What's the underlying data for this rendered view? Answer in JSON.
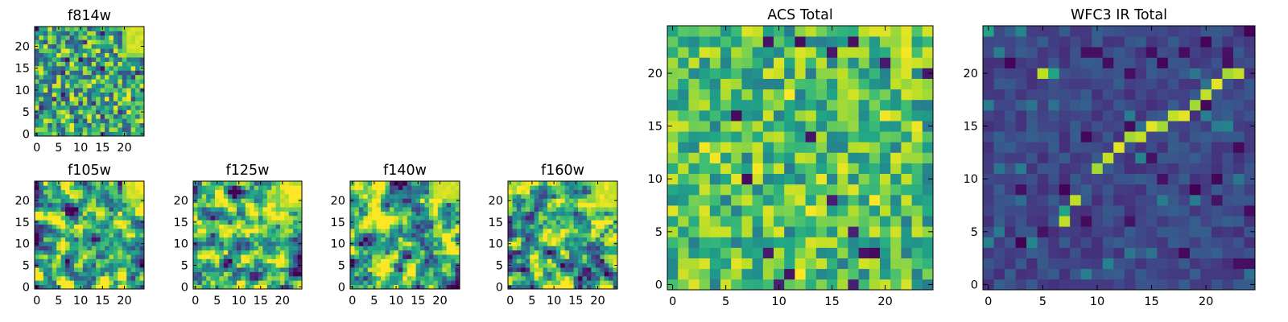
{
  "chart_data": [
    {
      "type": "heatmap",
      "id": "f814w",
      "title": "f814w",
      "grid": [
        25,
        25
      ],
      "xlim": [
        -0.5,
        24.5
      ],
      "ylim": [
        -0.5,
        24.5
      ],
      "xticks": [
        0,
        5,
        10,
        15,
        20
      ],
      "yticks": [
        0,
        5,
        10,
        15,
        20
      ],
      "colormap": "viridis",
      "pattern": "noise",
      "seed": 11,
      "hot_region": {
        "x": [
          20,
          24
        ],
        "y": [
          18,
          24
        ],
        "level": 0.92
      }
    },
    {
      "type": "heatmap",
      "id": "f105w",
      "title": "f105w",
      "grid": [
        25,
        25
      ],
      "xlim": [
        -0.5,
        24.5
      ],
      "ylim": [
        -0.5,
        24.5
      ],
      "xticks": [
        0,
        5,
        10,
        15,
        20
      ],
      "yticks": [
        0,
        5,
        10,
        15,
        20
      ],
      "colormap": "viridis",
      "pattern": "smooth-noise",
      "seed": 23,
      "hot_region": {
        "x": [
          20,
          24
        ],
        "y": [
          20,
          24
        ],
        "level": 0.95
      }
    },
    {
      "type": "heatmap",
      "id": "f125w",
      "title": "f125w",
      "grid": [
        25,
        25
      ],
      "xlim": [
        -0.5,
        24.5
      ],
      "ylim": [
        -0.5,
        24.5
      ],
      "xticks": [
        0,
        5,
        10,
        15,
        20
      ],
      "yticks": [
        0,
        5,
        10,
        15,
        20
      ],
      "colormap": "viridis",
      "pattern": "smooth-noise",
      "seed": 37,
      "hot_region": {
        "x": [
          19,
          24
        ],
        "y": [
          18,
          24
        ],
        "level": 0.9
      }
    },
    {
      "type": "heatmap",
      "id": "f140w",
      "title": "f140w",
      "grid": [
        25,
        25
      ],
      "xlim": [
        -0.5,
        24.5
      ],
      "ylim": [
        -0.5,
        24.5
      ],
      "xticks": [
        0,
        5,
        10,
        15,
        20
      ],
      "yticks": [
        0,
        5,
        10,
        15,
        20
      ],
      "colormap": "viridis",
      "pattern": "smooth-noise",
      "seed": 41,
      "hot_region": {
        "x": [
          18,
          24
        ],
        "y": [
          20,
          24
        ],
        "level": 0.93
      }
    },
    {
      "type": "heatmap",
      "id": "f160w",
      "title": "f160w",
      "grid": [
        25,
        25
      ],
      "xlim": [
        -0.5,
        24.5
      ],
      "ylim": [
        -0.5,
        24.5
      ],
      "xticks": [
        0,
        5,
        10,
        15,
        20
      ],
      "yticks": [
        0,
        5,
        10,
        15,
        20
      ],
      "colormap": "viridis",
      "pattern": "smooth-noise",
      "seed": 53,
      "hot_region": {
        "x": [
          19,
          24
        ],
        "y": [
          18,
          24
        ],
        "level": 0.93
      }
    },
    {
      "type": "heatmap",
      "id": "acs-total",
      "title": "ACS Total",
      "grid": [
        25,
        25
      ],
      "xlim": [
        -0.5,
        24.5
      ],
      "ylim": [
        -0.5,
        24.5
      ],
      "xticks": [
        0,
        5,
        10,
        15,
        20
      ],
      "yticks": [
        0,
        5,
        10,
        15,
        20
      ],
      "colormap": "viridis",
      "pattern": "noise-high",
      "seed": 61,
      "hot_region": {
        "x": [
          21,
          22
        ],
        "y": [
          19,
          24
        ],
        "level": 0.97
      }
    },
    {
      "type": "heatmap",
      "id": "wfc3-ir-total",
      "title": "WFC3 IR Total",
      "grid": [
        25,
        25
      ],
      "xlim": [
        -0.5,
        24.5
      ],
      "ylim": [
        -0.5,
        24.5
      ],
      "xticks": [
        0,
        5,
        10,
        15,
        20
      ],
      "yticks": [
        0,
        5,
        10,
        15,
        20
      ],
      "colormap": "viridis",
      "pattern": "noise-low-diagonal",
      "seed": 79,
      "diagonal": [
        [
          10,
          11
        ],
        [
          11,
          12
        ],
        [
          12,
          13
        ],
        [
          13,
          14
        ],
        [
          14,
          14
        ],
        [
          15,
          15
        ],
        [
          16,
          15
        ],
        [
          17,
          16
        ],
        [
          18,
          16
        ],
        [
          19,
          17
        ],
        [
          20,
          18
        ],
        [
          21,
          19
        ],
        [
          22,
          20
        ],
        [
          23,
          20
        ]
      ],
      "hot_spots": [
        [
          5,
          20
        ],
        [
          6,
          20
        ],
        [
          7,
          6
        ],
        [
          7,
          7
        ],
        [
          8,
          8
        ],
        [
          0,
          24
        ]
      ]
    }
  ]
}
